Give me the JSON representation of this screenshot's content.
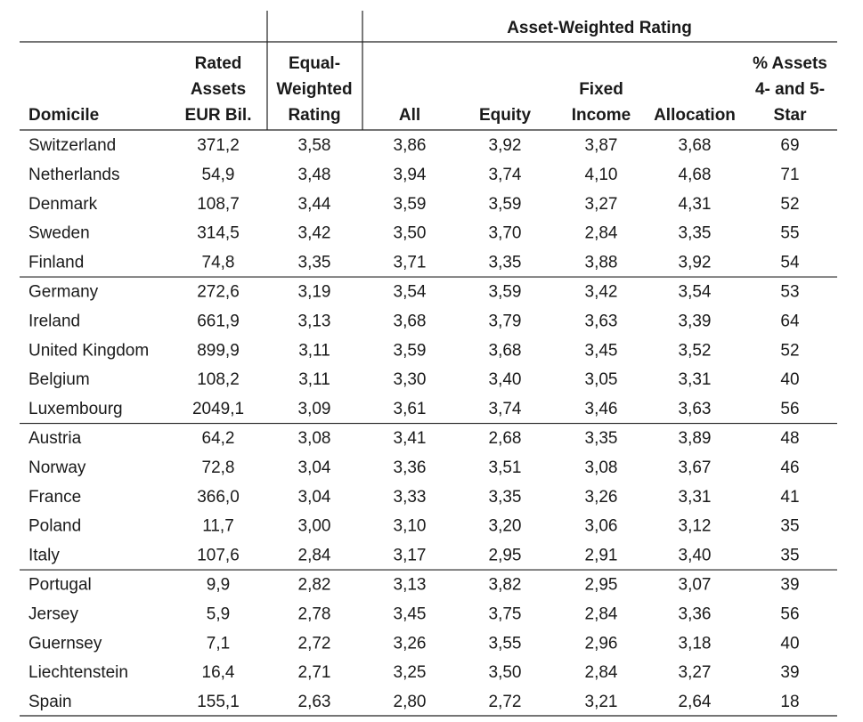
{
  "table": {
    "title": "Asset-Weighted Rating",
    "columns": [
      [
        "Domicile"
      ],
      [
        "Rated",
        "Assets",
        "EUR Bil."
      ],
      [
        "Equal-",
        "Weighted",
        "Rating"
      ],
      [
        "All"
      ],
      [
        "Equity"
      ],
      [
        "Fixed",
        "Income"
      ],
      [
        "Allocation"
      ],
      [
        "% Assets",
        "4- and 5-",
        "Star"
      ]
    ],
    "rows": [
      [
        "Switzerland",
        "371,2",
        "3,58",
        "3,86",
        "3,92",
        "3,87",
        "3,68",
        "69"
      ],
      [
        "Netherlands",
        "54,9",
        "3,48",
        "3,94",
        "3,74",
        "4,10",
        "4,68",
        "71"
      ],
      [
        "Denmark",
        "108,7",
        "3,44",
        "3,59",
        "3,59",
        "3,27",
        "4,31",
        "52"
      ],
      [
        "Sweden",
        "314,5",
        "3,42",
        "3,50",
        "3,70",
        "2,84",
        "3,35",
        "55"
      ],
      [
        "Finland",
        "74,8",
        "3,35",
        "3,71",
        "3,35",
        "3,88",
        "3,92",
        "54"
      ],
      [
        "Germany",
        "272,6",
        "3,19",
        "3,54",
        "3,59",
        "3,42",
        "3,54",
        "53"
      ],
      [
        "Ireland",
        "661,9",
        "3,13",
        "3,68",
        "3,79",
        "3,63",
        "3,39",
        "64"
      ],
      [
        "United Kingdom",
        "899,9",
        "3,11",
        "3,59",
        "3,68",
        "3,45",
        "3,52",
        "52"
      ],
      [
        "Belgium",
        "108,2",
        "3,11",
        "3,30",
        "3,40",
        "3,05",
        "3,31",
        "40"
      ],
      [
        "Luxembourg",
        "2049,1",
        "3,09",
        "3,61",
        "3,74",
        "3,46",
        "3,63",
        "56"
      ],
      [
        "Austria",
        "64,2",
        "3,08",
        "3,41",
        "2,68",
        "3,35",
        "3,89",
        "48"
      ],
      [
        "Norway",
        "72,8",
        "3,04",
        "3,36",
        "3,51",
        "3,08",
        "3,67",
        "46"
      ],
      [
        "France",
        "366,0",
        "3,04",
        "3,33",
        "3,35",
        "3,26",
        "3,31",
        "41"
      ],
      [
        "Poland",
        "11,7",
        "3,00",
        "3,10",
        "3,20",
        "3,06",
        "3,12",
        "35"
      ],
      [
        "Italy",
        "107,6",
        "2,84",
        "3,17",
        "2,95",
        "2,91",
        "3,40",
        "35"
      ],
      [
        "Portugal",
        "9,9",
        "2,82",
        "3,13",
        "3,82",
        "2,95",
        "3,07",
        "39"
      ],
      [
        "Jersey",
        "5,9",
        "2,78",
        "3,45",
        "3,75",
        "2,84",
        "3,36",
        "56"
      ],
      [
        "Guernsey",
        "7,1",
        "2,72",
        "3,26",
        "3,55",
        "2,96",
        "3,18",
        "40"
      ],
      [
        "Liechtenstein",
        "16,4",
        "2,71",
        "3,25",
        "3,50",
        "2,84",
        "3,27",
        "39"
      ],
      [
        "Spain",
        "155,1",
        "2,63",
        "2,80",
        "2,72",
        "3,21",
        "2,64",
        "18"
      ]
    ]
  }
}
